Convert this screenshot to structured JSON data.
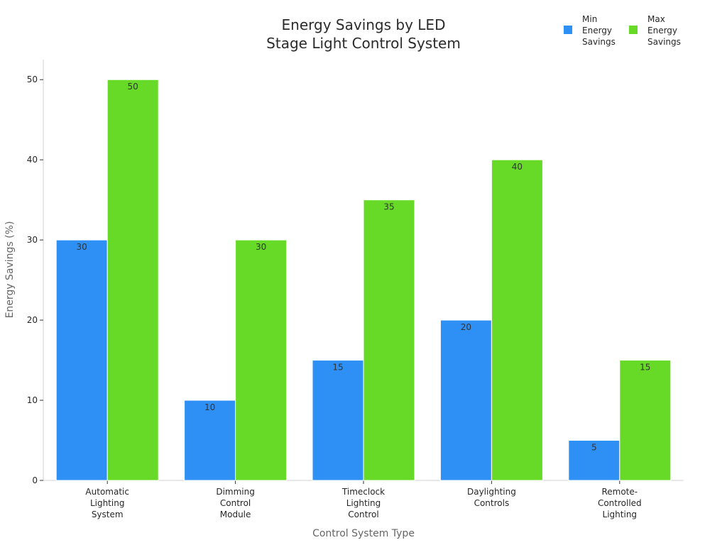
{
  "chart_data": {
    "type": "bar",
    "title_lines": [
      "Energy Savings by LED",
      "Stage Light Control System"
    ],
    "xlabel": "Control System Type",
    "ylabel": "Energy Savings (%)",
    "categories": [
      [
        "Automatic",
        "Lighting",
        "System"
      ],
      [
        "Dimming",
        "Control",
        "Module"
      ],
      [
        "Timeclock",
        "Lighting",
        "Control"
      ],
      [
        "Daylighting",
        "Controls"
      ],
      [
        "Remote-",
        "Controlled",
        "Lighting"
      ]
    ],
    "series": [
      {
        "name_lines": [
          "Min",
          "Energy",
          "Savings"
        ],
        "color": "#2E90F5",
        "values": [
          30,
          10,
          15,
          20,
          5
        ]
      },
      {
        "name_lines": [
          "Max",
          "Energy",
          "Savings"
        ],
        "color": "#66DA26",
        "values": [
          50,
          30,
          35,
          40,
          15
        ]
      }
    ],
    "ylim": [
      0,
      52.5
    ],
    "yticks": [
      0,
      10,
      20,
      30,
      40,
      50
    ],
    "grid": false,
    "legend_position": "top-right",
    "bar_labels": true
  }
}
